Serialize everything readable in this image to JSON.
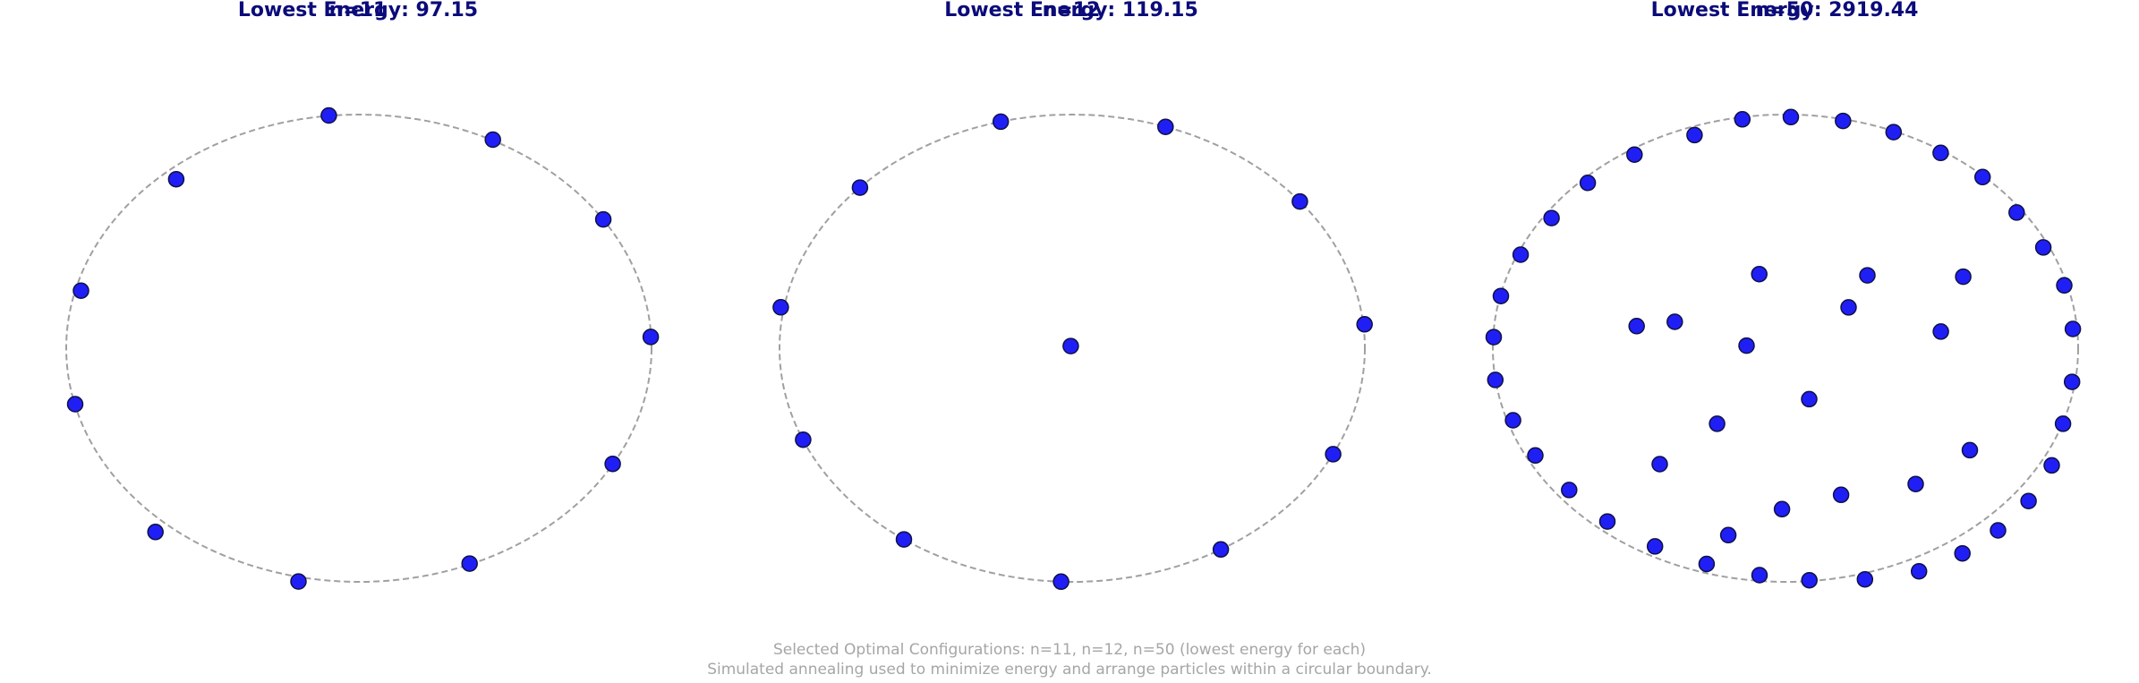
{
  "chart_data": [
    {
      "type": "scatter",
      "title": "n=11",
      "subtitle": "Lowest Energy: 97.15",
      "boundary": "circle",
      "x": [
        0.9972,
        0.8673,
        0.3783,
        -0.2065,
        -0.695,
        -0.9694,
        -0.9494,
        -0.6242,
        -0.1029,
        0.4578,
        0.8351
      ],
      "y": [
        0.0483,
        -0.495,
        -0.9218,
        -0.9985,
        -0.7866,
        -0.2395,
        0.2462,
        0.7233,
        0.9962,
        0.8929,
        0.5513
      ]
    },
    {
      "type": "scatter",
      "title": "n=12",
      "subtitle": "Lowest Energy: 119.15",
      "boundary": "circle",
      "x": [
        -0.0048,
        0.999,
        0.8918,
        0.5079,
        -0.038,
        -0.5748,
        -0.9193,
        -0.9956,
        -0.7252,
        -0.244,
        0.3189,
        0.7781
      ],
      "y": [
        0.0093,
        0.1022,
        -0.4538,
        -0.8614,
        -0.9993,
        -0.8184,
        -0.3915,
        0.1751,
        0.6875,
        0.9697,
        0.9474,
        0.6281
      ]
    },
    {
      "type": "scatter",
      "title": "n=50",
      "subtitle": "Lowest Energy: 2919.44",
      "boundary": "circle",
      "x": [
        -0.0897,
        0.2797,
        -0.133,
        0.5309,
        0.2157,
        -0.5087,
        -0.2335,
        0.63,
        -0.4297,
        0.4449,
        -0.012,
        0.6072,
        0.0811,
        -0.3782,
        0.1898,
        -0.1954,
        0.9793,
        0.9484,
        0.9099,
        0.8306,
        0.7262,
        0.6047,
        0.4563,
        0.2717,
        0.0817,
        -0.0886,
        -0.2693,
        -0.4459,
        -0.6086,
        -0.7392,
        -0.8547,
        -0.931,
        -0.9914,
        -0.997,
        -0.9725,
        -0.9048,
        -0.7994,
        -0.6756,
        -0.5158,
        -0.3107,
        -0.1473,
        0.0183,
        0.1966,
        0.3695,
        0.5303,
        0.6734,
        0.79,
        0.8811,
        0.9525,
        0.9819
      ],
      "y": [
        0.3172,
        0.3118,
        0.011,
        0.0711,
        0.1747,
        0.0945,
        -0.3235,
        -0.4365,
        -0.496,
        -0.5811,
        -0.689,
        0.3061,
        -0.2181,
        0.1129,
        -0.6277,
        -0.7999,
        -0.1441,
        -0.3235,
        -0.5016,
        -0.6542,
        -0.7796,
        -0.8781,
        -0.9547,
        -0.9894,
        -0.993,
        -0.9712,
        -0.9235,
        -0.8484,
        -0.7416,
        -0.6069,
        -0.4589,
        -0.3086,
        -0.1356,
        0.0477,
        0.2234,
        0.4005,
        0.557,
        0.7077,
        0.8288,
        0.9124,
        0.9797,
        0.9893,
        0.9729,
        0.925,
        0.836,
        0.7324,
        0.5807,
        0.4316,
        0.2688,
        0.0825
      ]
    }
  ],
  "footer": {
    "line1": "Selected Optimal Configurations: n=11, n=12, n=50 (lowest energy for each)",
    "line2": "Simulated annealing used to minimize energy and arrange particles within a circular boundary."
  },
  "colors": {
    "title": "#0b0b7a",
    "point_fill": "#1f1ff5",
    "point_edge": "#101048",
    "boundary": "#a0a0a0",
    "footer": "#a6a6a6"
  }
}
